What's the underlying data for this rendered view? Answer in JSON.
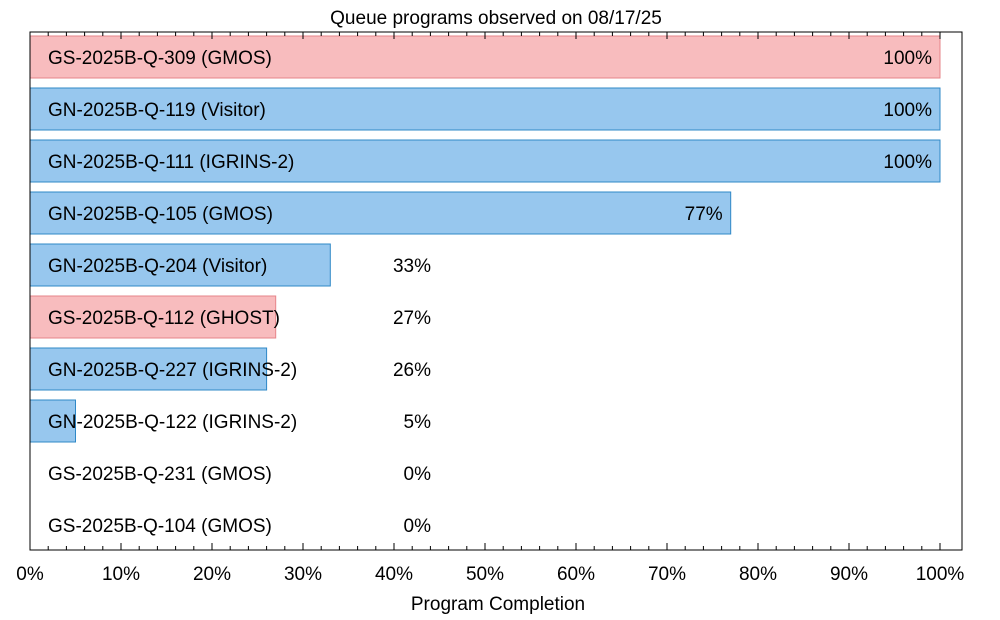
{
  "chart_data": {
    "type": "bar",
    "orientation": "horizontal",
    "title": "Queue programs observed on 08/17/25",
    "xlabel": "Program Completion",
    "ylabel": "",
    "xlim": [
      0,
      100
    ],
    "x_ticks": [
      "0%",
      "10%",
      "20%",
      "30%",
      "40%",
      "50%",
      "60%",
      "70%",
      "80%",
      "90%",
      "100%"
    ],
    "grid": false,
    "legend": "none",
    "colors": {
      "GS": {
        "fill": "#f8bcbe",
        "stroke": "#e6858a"
      },
      "GN": {
        "fill": "#97c7ee",
        "stroke": "#2f88c7"
      }
    },
    "bars": [
      {
        "label": "GS-2025B-Q-309 (GMOS)",
        "value": 100,
        "value_label": "100%",
        "site": "GS"
      },
      {
        "label": "GN-2025B-Q-119 (Visitor)",
        "value": 100,
        "value_label": "100%",
        "site": "GN"
      },
      {
        "label": "GN-2025B-Q-111 (IGRINS-2)",
        "value": 100,
        "value_label": "100%",
        "site": "GN"
      },
      {
        "label": "GN-2025B-Q-105 (GMOS)",
        "value": 77,
        "value_label": "77%",
        "site": "GN"
      },
      {
        "label": "GN-2025B-Q-204 (Visitor)",
        "value": 33,
        "value_label": "33%",
        "site": "GN"
      },
      {
        "label": "GS-2025B-Q-112 (GHOST)",
        "value": 27,
        "value_label": "27%",
        "site": "GS"
      },
      {
        "label": "GN-2025B-Q-227 (IGRINS-2)",
        "value": 26,
        "value_label": "26%",
        "site": "GN"
      },
      {
        "label": "GN-2025B-Q-122 (IGRINS-2)",
        "value": 5,
        "value_label": "5%",
        "site": "GN"
      },
      {
        "label": "GS-2025B-Q-231 (GMOS)",
        "value": 0,
        "value_label": "0%",
        "site": "GS"
      },
      {
        "label": "GS-2025B-Q-104 (GMOS)",
        "value": 0,
        "value_label": "0%",
        "site": "GS"
      }
    ]
  }
}
